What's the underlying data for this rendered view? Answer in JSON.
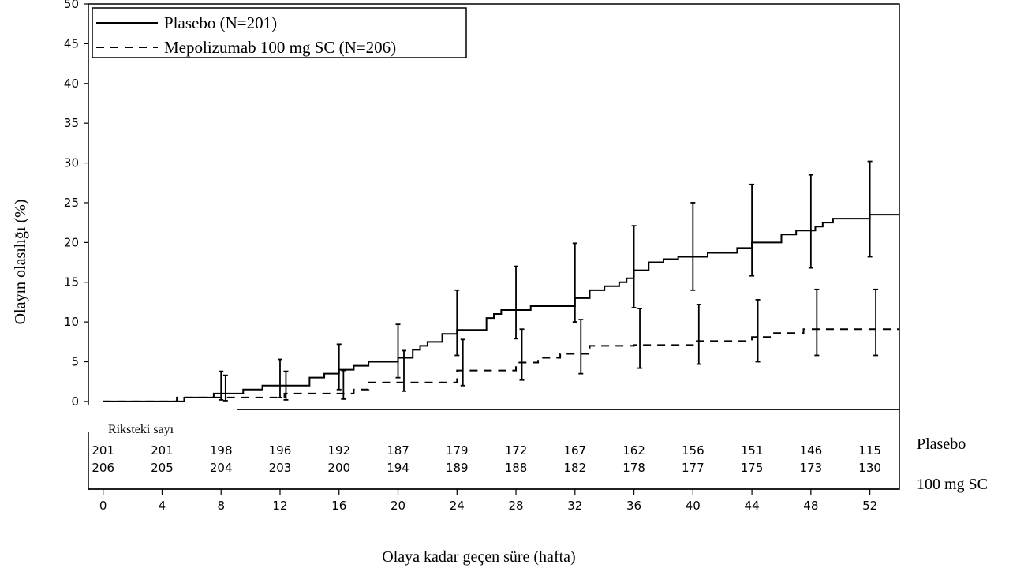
{
  "chart_data": {
    "type": "line",
    "step": true,
    "xlabel": "Olaya kadar geçen süre (hafta)",
    "ylabel": "Olayın olasılığı (%)",
    "xlim": [
      -1,
      54
    ],
    "ylim": [
      -1,
      50
    ],
    "xticks": [
      0,
      4,
      8,
      12,
      16,
      20,
      24,
      28,
      32,
      36,
      40,
      44,
      48,
      52
    ],
    "yticks": [
      0,
      5,
      10,
      15,
      20,
      25,
      30,
      35,
      40,
      45,
      50
    ],
    "grid": false,
    "legend_position": "top-left",
    "series": [
      {
        "name": "Plasebo (N=201)",
        "line_style": "solid",
        "color": "#000000",
        "x": [
          0,
          5.5,
          7.5,
          9.5,
          10.8,
          14,
          15,
          16,
          17,
          18,
          20,
          21,
          21.5,
          22,
          23,
          24,
          26,
          26.5,
          27,
          29,
          32,
          33,
          34,
          35,
          35.5,
          36,
          37,
          38,
          39,
          41,
          43,
          44,
          46,
          47,
          48.3,
          48.8,
          49.5,
          52,
          54
        ],
        "y": [
          0,
          0.5,
          1.0,
          1.5,
          2.0,
          3.0,
          3.5,
          4.0,
          4.5,
          5.0,
          5.5,
          6.5,
          7.0,
          7.5,
          8.5,
          9.0,
          10.5,
          11.0,
          11.5,
          12.0,
          13.0,
          14.0,
          14.5,
          15.0,
          15.5,
          16.5,
          17.5,
          17.9,
          18.2,
          18.7,
          19.3,
          20.0,
          21.0,
          21.5,
          22.0,
          22.5,
          23.0,
          23.5,
          23.5
        ],
        "ci_x": [
          8,
          12,
          16,
          20,
          24,
          28,
          32,
          36,
          40,
          44,
          48,
          52
        ],
        "ci_lower": [
          0.2,
          0.5,
          1.5,
          3.0,
          5.8,
          7.9,
          10.0,
          11.8,
          14.0,
          15.8,
          16.8,
          18.2
        ],
        "ci_upper": [
          3.8,
          5.3,
          7.2,
          9.7,
          14.0,
          17.0,
          19.9,
          22.1,
          25.0,
          27.3,
          28.5,
          30.2
        ]
      },
      {
        "name": "Mepolizumab 100 mg SC (N=206)",
        "line_style": "dashed",
        "color": "#000000",
        "x": [
          0,
          5,
          12.3,
          17,
          18,
          24,
          28,
          29.5,
          31,
          33,
          36,
          37,
          40,
          44,
          45.5,
          47.5,
          54
        ],
        "y": [
          0,
          0.5,
          1.0,
          1.5,
          2.4,
          3.9,
          4.9,
          5.5,
          6.0,
          7.0,
          7.1,
          7.1,
          7.6,
          8.1,
          8.6,
          9.1,
          9.1
        ],
        "ci_x": [
          8.3,
          12.4,
          16.3,
          20.4,
          24.4,
          28.4,
          32.4,
          36.4,
          40.4,
          44.4,
          48.4,
          52.4
        ],
        "ci_lower": [
          0.1,
          0.2,
          0.3,
          1.3,
          2.0,
          2.7,
          3.5,
          4.2,
          4.7,
          5.0,
          5.8,
          5.8
        ],
        "ci_upper": [
          3.3,
          3.8,
          3.9,
          6.4,
          7.8,
          9.1,
          10.3,
          11.7,
          12.2,
          12.8,
          14.1,
          14.1
        ]
      }
    ],
    "risk_table": {
      "title": "Riksteki sayı",
      "times": [
        0,
        4,
        8,
        12,
        16,
        20,
        24,
        28,
        32,
        36,
        40,
        44,
        48,
        52
      ],
      "rows": [
        {
          "label": "Plasebo",
          "values": [
            201,
            201,
            198,
            196,
            192,
            187,
            179,
            172,
            167,
            162,
            156,
            151,
            146,
            115
          ]
        },
        {
          "label": "100 mg SC",
          "values": [
            206,
            205,
            204,
            203,
            200,
            194,
            189,
            188,
            182,
            178,
            177,
            175,
            173,
            130
          ]
        }
      ]
    }
  }
}
